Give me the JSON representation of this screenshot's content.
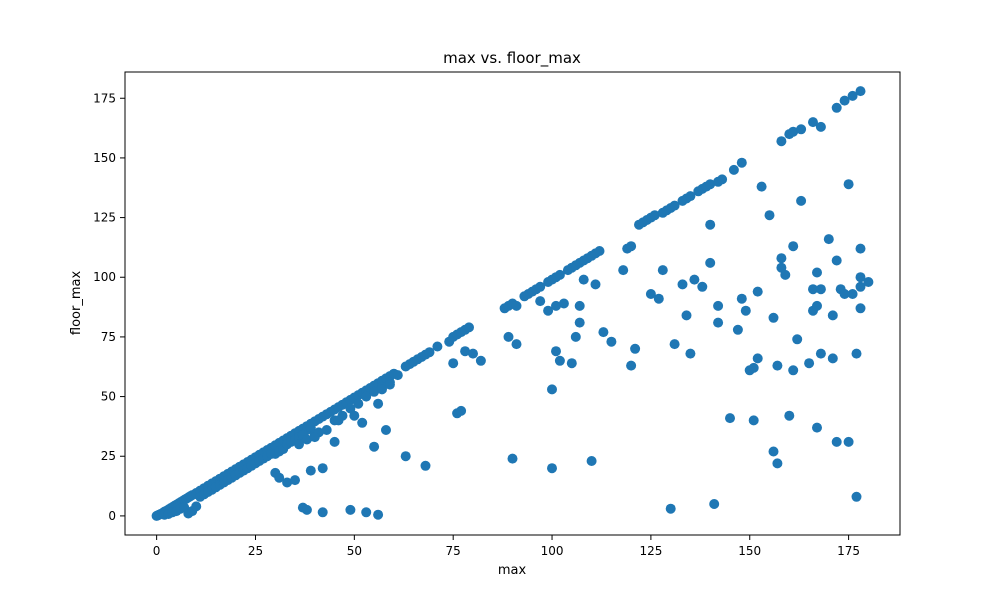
{
  "chart_data": {
    "type": "scatter",
    "title": "max vs. floor_max",
    "xlabel": "max",
    "ylabel": "floor_max",
    "xlim": [
      -8,
      188
    ],
    "ylim": [
      -8,
      186
    ],
    "xticks": [
      0,
      25,
      50,
      75,
      100,
      125,
      150,
      175
    ],
    "yticks": [
      0,
      25,
      50,
      75,
      100,
      125,
      150,
      175
    ],
    "xtick_labels": [
      "0",
      "25",
      "50",
      "75",
      "100",
      "125",
      "150",
      "175"
    ],
    "ytick_labels": [
      "0",
      "25",
      "50",
      "75",
      "100",
      "125",
      "150",
      "175"
    ],
    "color": "#1f77b4",
    "grid": false,
    "points": [
      [
        0,
        0
      ],
      [
        0.3,
        0.2
      ],
      [
        0.6,
        0.5
      ],
      [
        1,
        0.8
      ],
      [
        1.5,
        1.2
      ],
      [
        2,
        1.8
      ],
      [
        2.5,
        2.2
      ],
      [
        3,
        2.7
      ],
      [
        3.5,
        3.2
      ],
      [
        4,
        3.7
      ],
      [
        4.5,
        4.2
      ],
      [
        5,
        4.7
      ],
      [
        5.5,
        5.2
      ],
      [
        6,
        5.7
      ],
      [
        6.5,
        6.2
      ],
      [
        7,
        6.7
      ],
      [
        7.5,
        7.2
      ],
      [
        8,
        7.7
      ],
      [
        8.5,
        8.2
      ],
      [
        9,
        8.7
      ],
      [
        10,
        9.6
      ],
      [
        11,
        10.6
      ],
      [
        12,
        11.6
      ],
      [
        13,
        12.6
      ],
      [
        14,
        13.6
      ],
      [
        15,
        14.6
      ],
      [
        16,
        15.6
      ],
      [
        17,
        16.6
      ],
      [
        18,
        17.6
      ],
      [
        19,
        18.6
      ],
      [
        20,
        19.6
      ],
      [
        21,
        20.6
      ],
      [
        22,
        21.6
      ],
      [
        23,
        22.6
      ],
      [
        24,
        23.6
      ],
      [
        25,
        24.6
      ],
      [
        26,
        25.6
      ],
      [
        27,
        26.6
      ],
      [
        28,
        27.6
      ],
      [
        29,
        28.6
      ],
      [
        30,
        29.6
      ],
      [
        31,
        30.6
      ],
      [
        32,
        31.6
      ],
      [
        33,
        32.6
      ],
      [
        34,
        33.6
      ],
      [
        35,
        34.6
      ],
      [
        36,
        35.6
      ],
      [
        37,
        36.6
      ],
      [
        38,
        37.6
      ],
      [
        39,
        38.6
      ],
      [
        40,
        39.6
      ],
      [
        41,
        40.6
      ],
      [
        42,
        41.6
      ],
      [
        43,
        42.6
      ],
      [
        44,
        43.6
      ],
      [
        45,
        44.6
      ],
      [
        46,
        45.6
      ],
      [
        47,
        46.6
      ],
      [
        48,
        47.6
      ],
      [
        49,
        48.6
      ],
      [
        50,
        49.6
      ],
      [
        51,
        50.6
      ],
      [
        52,
        51.6
      ],
      [
        53,
        52.6
      ],
      [
        54,
        53.6
      ],
      [
        55,
        54.6
      ],
      [
        56,
        55.6
      ],
      [
        57,
        56.6
      ],
      [
        58,
        57.6
      ],
      [
        59,
        58.6
      ],
      [
        60,
        59.6
      ],
      [
        63,
        62.6
      ],
      [
        64,
        63.6
      ],
      [
        65,
        64.6
      ],
      [
        66,
        65.6
      ],
      [
        67,
        66.6
      ],
      [
        68,
        67.6
      ],
      [
        69,
        68.6
      ],
      [
        71,
        71
      ],
      [
        74,
        73
      ],
      [
        75,
        75
      ],
      [
        76,
        76
      ],
      [
        77,
        77
      ],
      [
        78,
        78
      ],
      [
        79,
        79
      ],
      [
        88,
        87
      ],
      [
        89,
        88
      ],
      [
        90,
        89
      ],
      [
        91,
        88
      ],
      [
        93,
        92
      ],
      [
        94,
        93
      ],
      [
        95,
        94
      ],
      [
        96,
        95
      ],
      [
        97,
        96
      ],
      [
        99,
        98
      ],
      [
        100,
        99
      ],
      [
        101,
        100
      ],
      [
        102,
        101
      ],
      [
        104,
        103
      ],
      [
        105,
        104
      ],
      [
        106,
        105
      ],
      [
        107,
        106
      ],
      [
        108,
        107
      ],
      [
        109,
        108
      ],
      [
        110,
        109
      ],
      [
        111,
        110
      ],
      [
        112,
        111
      ],
      [
        119,
        112
      ],
      [
        120,
        113
      ],
      [
        122,
        122
      ],
      [
        123,
        123
      ],
      [
        124,
        124
      ],
      [
        125,
        125
      ],
      [
        126,
        126
      ],
      [
        128,
        127
      ],
      [
        129,
        128
      ],
      [
        130,
        129
      ],
      [
        131,
        130
      ],
      [
        133,
        132
      ],
      [
        134,
        133
      ],
      [
        135,
        134
      ],
      [
        137,
        136
      ],
      [
        138,
        137
      ],
      [
        139,
        138
      ],
      [
        140,
        139
      ],
      [
        142,
        140
      ],
      [
        143,
        141
      ],
      [
        146,
        145
      ],
      [
        148,
        148
      ],
      [
        158,
        157
      ],
      [
        160,
        160
      ],
      [
        161,
        161
      ],
      [
        163,
        162
      ],
      [
        166,
        165
      ],
      [
        168,
        163
      ],
      [
        172,
        171
      ],
      [
        174,
        174
      ],
      [
        176,
        176
      ],
      [
        178,
        178
      ],
      [
        2,
        0.5
      ],
      [
        3,
        0.8
      ],
      [
        4,
        1.5
      ],
      [
        5,
        2
      ],
      [
        6,
        3
      ],
      [
        7,
        3.5
      ],
      [
        8,
        1
      ],
      [
        9,
        2
      ],
      [
        10,
        4
      ],
      [
        11,
        8
      ],
      [
        12,
        9
      ],
      [
        13,
        10
      ],
      [
        14,
        11
      ],
      [
        15,
        12
      ],
      [
        16,
        13
      ],
      [
        17,
        14
      ],
      [
        18,
        15
      ],
      [
        19,
        16
      ],
      [
        20,
        17
      ],
      [
        21,
        18
      ],
      [
        22,
        19
      ],
      [
        23,
        20
      ],
      [
        24,
        21
      ],
      [
        25,
        22
      ],
      [
        26,
        23
      ],
      [
        27,
        24
      ],
      [
        28,
        25
      ],
      [
        29,
        26
      ],
      [
        30,
        26
      ],
      [
        31,
        27
      ],
      [
        32,
        28
      ],
      [
        33,
        30
      ],
      [
        34,
        31
      ],
      [
        35,
        32
      ],
      [
        36,
        33
      ],
      [
        37,
        34
      ],
      [
        38,
        36
      ],
      [
        39,
        37
      ],
      [
        40,
        34
      ],
      [
        41,
        35
      ],
      [
        43,
        36
      ],
      [
        45,
        40
      ],
      [
        47,
        42
      ],
      [
        49,
        45
      ],
      [
        51,
        47
      ],
      [
        53,
        50
      ],
      [
        55,
        52
      ],
      [
        57,
        54
      ],
      [
        59,
        56
      ],
      [
        61,
        59
      ],
      [
        30,
        18
      ],
      [
        31,
        16
      ],
      [
        33,
        14
      ],
      [
        35,
        15
      ],
      [
        36,
        30
      ],
      [
        37,
        34
      ],
      [
        38,
        32
      ],
      [
        39,
        19
      ],
      [
        40,
        33
      ],
      [
        42,
        20
      ],
      [
        45,
        31
      ],
      [
        46,
        40
      ],
      [
        50,
        42
      ],
      [
        52,
        39
      ],
      [
        55,
        29
      ],
      [
        56,
        47
      ],
      [
        57,
        53
      ],
      [
        58,
        36
      ],
      [
        59,
        55
      ],
      [
        63,
        25
      ],
      [
        68,
        21
      ],
      [
        75,
        64
      ],
      [
        76,
        43
      ],
      [
        77,
        44
      ],
      [
        78,
        69
      ],
      [
        80,
        68
      ],
      [
        82,
        65
      ],
      [
        89,
        75
      ],
      [
        90,
        24
      ],
      [
        91,
        72
      ],
      [
        97,
        90
      ],
      [
        99,
        86
      ],
      [
        100,
        53
      ],
      [
        101,
        88
      ],
      [
        101,
        69
      ],
      [
        102,
        65
      ],
      [
        103,
        89
      ],
      [
        100,
        20
      ],
      [
        105,
        64
      ],
      [
        106,
        75
      ],
      [
        107,
        81
      ],
      [
        107,
        88
      ],
      [
        108,
        99
      ],
      [
        110,
        23
      ],
      [
        111,
        97
      ],
      [
        113,
        77
      ],
      [
        115,
        73
      ],
      [
        118,
        103
      ],
      [
        120,
        63
      ],
      [
        121,
        70
      ],
      [
        125,
        93
      ],
      [
        127,
        91
      ],
      [
        128,
        103
      ],
      [
        131,
        72
      ],
      [
        133,
        97
      ],
      [
        134,
        84
      ],
      [
        135,
        68
      ],
      [
        136,
        99
      ],
      [
        138,
        96
      ],
      [
        140,
        122
      ],
      [
        140,
        106
      ],
      [
        142,
        88
      ],
      [
        142,
        81
      ],
      [
        145,
        41
      ],
      [
        147,
        78
      ],
      [
        148,
        91
      ],
      [
        149,
        86
      ],
      [
        150,
        61
      ],
      [
        151,
        62
      ],
      [
        151,
        40
      ],
      [
        152,
        94
      ],
      [
        152,
        66
      ],
      [
        153,
        138
      ],
      [
        155,
        126
      ],
      [
        156,
        83
      ],
      [
        156,
        27
      ],
      [
        157,
        22
      ],
      [
        157,
        63
      ],
      [
        158,
        108
      ],
      [
        158,
        104
      ],
      [
        159,
        101
      ],
      [
        160,
        42
      ],
      [
        161,
        113
      ],
      [
        161,
        61
      ],
      [
        162,
        74
      ],
      [
        163,
        132
      ],
      [
        165,
        64
      ],
      [
        166,
        86
      ],
      [
        166,
        95
      ],
      [
        167,
        102
      ],
      [
        167,
        88
      ],
      [
        167,
        37
      ],
      [
        168,
        68
      ],
      [
        168,
        95
      ],
      [
        170,
        116
      ],
      [
        171,
        84
      ],
      [
        171,
        66
      ],
      [
        172,
        31
      ],
      [
        172,
        107
      ],
      [
        173,
        95
      ],
      [
        174,
        93
      ],
      [
        175,
        31
      ],
      [
        175,
        139
      ],
      [
        176,
        93
      ],
      [
        177,
        68
      ],
      [
        177,
        8
      ],
      [
        178,
        96
      ],
      [
        178,
        112
      ],
      [
        178,
        87
      ],
      [
        178,
        100
      ],
      [
        180,
        98
      ],
      [
        37,
        3.5
      ],
      [
        38,
        2.5
      ],
      [
        42,
        1.5
      ],
      [
        49,
        2.5
      ],
      [
        53,
        1.5
      ],
      [
        56,
        0.5
      ],
      [
        130,
        3
      ],
      [
        141,
        5
      ]
    ]
  }
}
